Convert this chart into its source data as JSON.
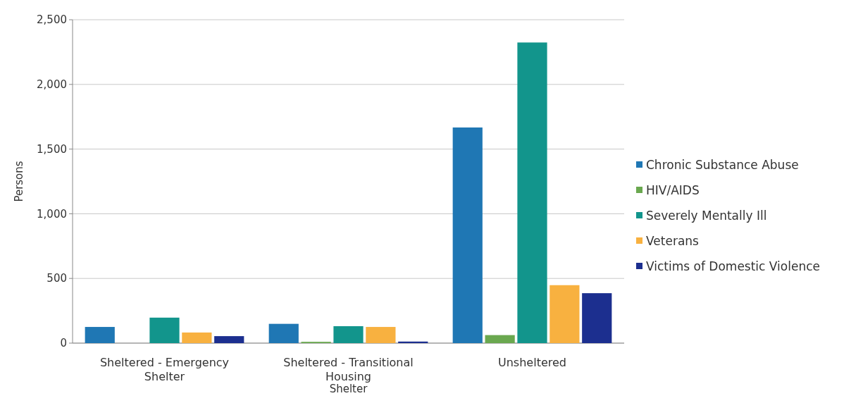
{
  "chart_data": {
    "type": "bar",
    "xlabel": "Shelter",
    "ylabel": "Persons",
    "categories": [
      "Sheltered - Emergency Shelter",
      "Sheltered - Transitional Housing",
      "Unsheltered"
    ],
    "series": [
      {
        "name": "Chronic Substance Abuse",
        "color": "#1f77b4",
        "values": [
          125,
          149,
          1667
        ]
      },
      {
        "name": "HIV/AIDS",
        "color": "#6aa84f",
        "values": [
          0,
          10,
          62
        ]
      },
      {
        "name": "Severely Mentally Ill",
        "color": "#12958c",
        "values": [
          197,
          131,
          2324
        ]
      },
      {
        "name": "Veterans",
        "color": "#f8b140",
        "values": [
          82,
          125,
          448
        ]
      },
      {
        "name": "Victims of Domestic Violence",
        "color": "#1c2f8f",
        "values": [
          54,
          12,
          386
        ]
      }
    ],
    "ylim": [
      0,
      2500
    ],
    "yticks": [
      {
        "value": 0,
        "label": "0"
      },
      {
        "value": 500,
        "label": "500"
      },
      {
        "value": 1000,
        "label": "1,000"
      },
      {
        "value": 1500,
        "label": "1,500"
      },
      {
        "value": 2000,
        "label": "2,000"
      },
      {
        "value": 2500,
        "label": "2,500"
      }
    ],
    "grid": "y",
    "legend": "right"
  }
}
